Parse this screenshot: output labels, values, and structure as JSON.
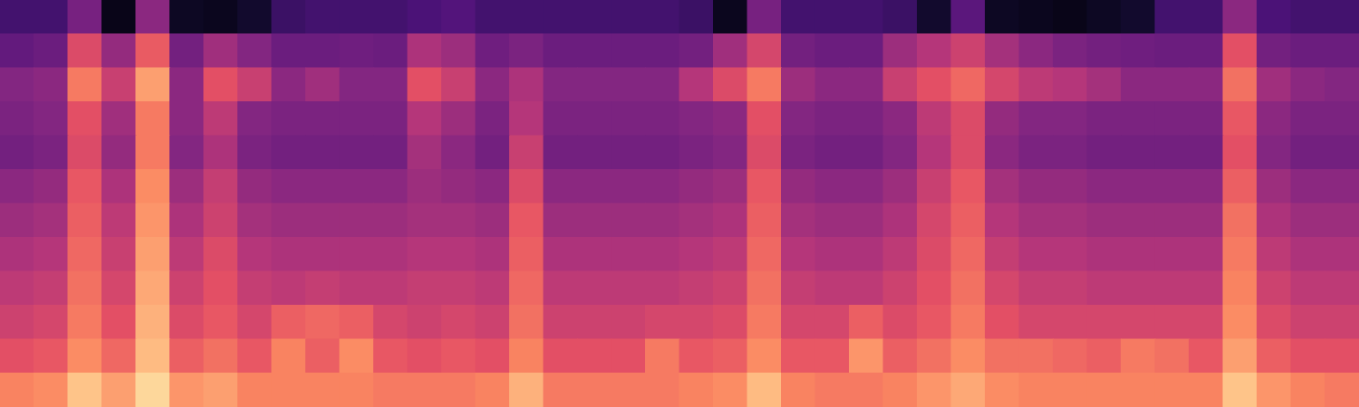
{
  "chart_data": {
    "type": "heatmap",
    "tick_labels": false,
    "xlim": [
      0,
      40
    ],
    "ylim": [
      0,
      12
    ],
    "zlim": [
      0,
      100
    ],
    "color": "magma",
    "cells": [
      [
        22,
        22,
        35,
        4,
        40,
        6,
        5,
        8,
        20,
        22,
        22,
        22,
        24,
        26,
        22,
        22,
        22,
        22,
        22,
        22,
        20,
        5,
        35,
        22,
        22,
        22,
        20,
        8,
        28,
        6,
        5,
        4,
        6,
        8,
        22,
        22,
        40,
        24,
        22,
        22
      ],
      [
        30,
        32,
        60,
        42,
        65,
        34,
        45,
        38,
        32,
        32,
        33,
        32,
        48,
        44,
        33,
        36,
        32,
        32,
        32,
        32,
        34,
        45,
        58,
        34,
        32,
        32,
        44,
        50,
        56,
        46,
        40,
        36,
        34,
        33,
        32,
        32,
        62,
        34,
        32,
        32
      ],
      [
        38,
        40,
        72,
        55,
        80,
        40,
        62,
        55,
        40,
        45,
        38,
        38,
        62,
        55,
        40,
        48,
        38,
        38,
        38,
        38,
        50,
        60,
        72,
        44,
        40,
        40,
        55,
        62,
        68,
        58,
        52,
        50,
        46,
        40,
        40,
        40,
        70,
        45,
        40,
        38
      ],
      [
        36,
        38,
        62,
        45,
        72,
        40,
        52,
        38,
        36,
        36,
        36,
        36,
        50,
        44,
        36,
        50,
        36,
        36,
        36,
        36,
        38,
        40,
        62,
        38,
        36,
        36,
        40,
        52,
        60,
        42,
        38,
        38,
        36,
        36,
        36,
        36,
        64,
        40,
        36,
        36
      ],
      [
        34,
        36,
        60,
        42,
        72,
        38,
        48,
        36,
        34,
        34,
        34,
        34,
        46,
        40,
        34,
        55,
        34,
        34,
        34,
        34,
        36,
        38,
        60,
        36,
        34,
        34,
        38,
        50,
        60,
        40,
        36,
        36,
        34,
        34,
        34,
        34,
        62,
        38,
        34,
        34
      ],
      [
        40,
        42,
        64,
        48,
        76,
        44,
        54,
        42,
        40,
        40,
        40,
        40,
        44,
        42,
        40,
        60,
        40,
        40,
        40,
        40,
        42,
        44,
        64,
        42,
        40,
        40,
        44,
        55,
        64,
        46,
        42,
        42,
        40,
        40,
        40,
        40,
        66,
        44,
        40,
        40
      ],
      [
        44,
        46,
        66,
        52,
        78,
        48,
        56,
        46,
        44,
        44,
        44,
        44,
        46,
        46,
        44,
        64,
        44,
        44,
        44,
        44,
        46,
        48,
        66,
        46,
        44,
        44,
        48,
        58,
        66,
        50,
        46,
        46,
        44,
        44,
        44,
        44,
        70,
        48,
        44,
        44
      ],
      [
        48,
        50,
        68,
        55,
        80,
        52,
        60,
        50,
        48,
        48,
        48,
        48,
        50,
        50,
        48,
        66,
        48,
        48,
        48,
        48,
        50,
        52,
        68,
        50,
        48,
        48,
        52,
        60,
        68,
        54,
        50,
        50,
        48,
        48,
        48,
        48,
        72,
        52,
        48,
        48
      ],
      [
        52,
        54,
        70,
        58,
        82,
        56,
        62,
        54,
        52,
        54,
        52,
        52,
        54,
        54,
        52,
        68,
        52,
        52,
        52,
        52,
        54,
        56,
        70,
        54,
        52,
        52,
        56,
        62,
        70,
        58,
        54,
        54,
        52,
        52,
        52,
        52,
        74,
        56,
        52,
        52
      ],
      [
        56,
        58,
        72,
        62,
        84,
        60,
        64,
        58,
        66,
        68,
        66,
        58,
        56,
        58,
        56,
        70,
        56,
        56,
        56,
        58,
        58,
        60,
        72,
        58,
        58,
        66,
        60,
        64,
        72,
        62,
        58,
        58,
        58,
        58,
        58,
        58,
        76,
        60,
        56,
        56
      ],
      [
        62,
        64,
        76,
        68,
        86,
        66,
        70,
        64,
        74,
        66,
        76,
        64,
        62,
        64,
        62,
        74,
        62,
        62,
        62,
        72,
        64,
        66,
        76,
        64,
        64,
        78,
        66,
        70,
        76,
        70,
        70,
        68,
        66,
        72,
        70,
        64,
        80,
        66,
        62,
        62
      ],
      [
        74,
        76,
        88,
        80,
        92,
        78,
        80,
        74,
        74,
        74,
        74,
        72,
        72,
        72,
        74,
        84,
        72,
        72,
        72,
        72,
        74,
        76,
        86,
        74,
        72,
        72,
        74,
        78,
        82,
        76,
        74,
        74,
        74,
        74,
        74,
        74,
        88,
        78,
        74,
        72
      ]
    ]
  }
}
